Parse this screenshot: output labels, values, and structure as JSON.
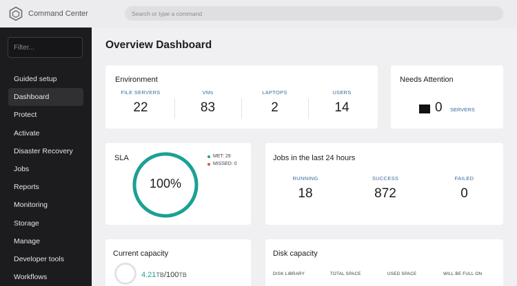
{
  "app": {
    "title": "Command Center"
  },
  "search": {
    "placeholder": "Search or type a command"
  },
  "sidebar": {
    "filter_placeholder": "Filter...",
    "items": [
      {
        "label": "Guided setup",
        "active": false
      },
      {
        "label": "Dashboard",
        "active": true
      },
      {
        "label": "Protect",
        "active": false
      },
      {
        "label": "Activate",
        "active": false
      },
      {
        "label": "Disaster Recovery",
        "active": false
      },
      {
        "label": "Jobs",
        "active": false
      },
      {
        "label": "Reports",
        "active": false
      },
      {
        "label": "Monitoring",
        "active": false
      },
      {
        "label": "Storage",
        "active": false
      },
      {
        "label": "Manage",
        "active": false
      },
      {
        "label": "Developer tools",
        "active": false
      },
      {
        "label": "Workflows",
        "active": false
      }
    ]
  },
  "page": {
    "title": "Overview Dashboard"
  },
  "environment": {
    "title": "Environment",
    "stats": [
      {
        "label": "FILE SERVERS",
        "value": "22"
      },
      {
        "label": "VMs",
        "value": "83"
      },
      {
        "label": "LAPTOPS",
        "value": "2"
      },
      {
        "label": "USERS",
        "value": "14"
      }
    ]
  },
  "needs_attention": {
    "title": "Needs Attention",
    "value": "0",
    "label": "SERVERS"
  },
  "sla": {
    "title": "SLA",
    "percent_label": "100%",
    "percent": 100,
    "met": "MET: 29",
    "missed": "MISSED: 0"
  },
  "jobs": {
    "title": "Jobs in the last 24 hours",
    "stats": [
      {
        "label": "RUNNING",
        "value": "18"
      },
      {
        "label": "SUCCESS",
        "value": "872"
      },
      {
        "label": "FAILED",
        "value": "0"
      }
    ]
  },
  "capacity": {
    "title": "Current capacity",
    "used": "4.21",
    "used_unit": "TB",
    "total": "/100",
    "total_unit": "TB"
  },
  "disk": {
    "title": "Disk capacity",
    "columns": [
      "DISK LIBRARY",
      "TOTAL SPACE",
      "USED SPACE",
      "WILL BE FULL ON"
    ]
  },
  "colors": {
    "accent": "#1aa195",
    "stat_label": "#3a6a9c",
    "missed": "#d9534f",
    "sidebar_bg": "#1c1c1f"
  }
}
